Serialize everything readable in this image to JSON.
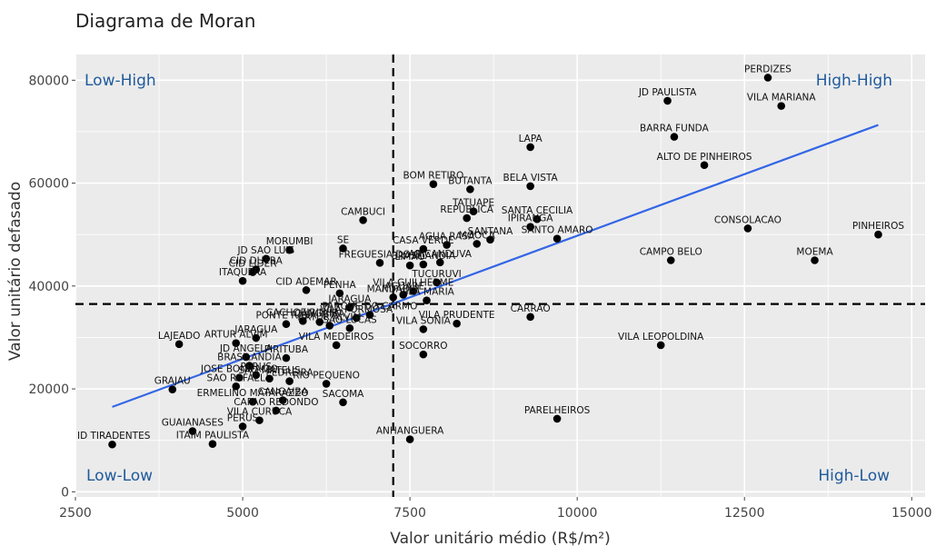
{
  "chart_data": {
    "type": "scatter",
    "title": "Diagrama de Moran",
    "xlabel": "Valor unitário médio (R$/m²)",
    "ylabel": "Valor unitário defasado",
    "xlim": [
      2500,
      15200
    ],
    "ylim": [
      -1000,
      85000
    ],
    "xticks": [
      "2500",
      "5000",
      "7500",
      "10000",
      "12500",
      "15000"
    ],
    "xtick_values": [
      2500,
      5000,
      7500,
      10000,
      12500,
      15000
    ],
    "yticks": [
      "0",
      "20000",
      "40000",
      "60000",
      "80000"
    ],
    "ytick_values": [
      0,
      20000,
      40000,
      60000,
      80000
    ],
    "grid": true,
    "mean_x": 7250,
    "mean_y": 36500,
    "trend_line": {
      "x": [
        3050,
        14500
      ],
      "y": [
        16500,
        71300
      ],
      "color": "#3366e6"
    },
    "quadrants": {
      "top_left": "Low-High",
      "top_right": "High-High",
      "bottom_left": "Low-Low",
      "bottom_right": "High-Low"
    },
    "colors": {
      "panel": "#ebebeb",
      "grid": "#ffffff",
      "points": "#000000",
      "quadrant_text": "#1f5a9c"
    },
    "points": [
      {
        "label": "PERDIZES",
        "x": 12850,
        "y": 80500
      },
      {
        "label": "JD PAULISTA",
        "x": 11350,
        "y": 76000
      },
      {
        "label": "VILA MARIANA",
        "x": 13050,
        "y": 75000
      },
      {
        "label": "BARRA FUNDA",
        "x": 11450,
        "y": 69000
      },
      {
        "label": "LAPA",
        "x": 9300,
        "y": 67000
      },
      {
        "label": "ALTO DE PINHEIROS",
        "x": 11900,
        "y": 63500
      },
      {
        "label": "BOM RETIRO",
        "x": 7850,
        "y": 59800
      },
      {
        "label": "BUTANTA",
        "x": 8400,
        "y": 58800
      },
      {
        "label": "BELA VISTA",
        "x": 9300,
        "y": 59400
      },
      {
        "label": "CAMBUCI",
        "x": 6800,
        "y": 52800
      },
      {
        "label": "TATUAPE",
        "x": 8450,
        "y": 54500
      },
      {
        "label": "REPUBLICA",
        "x": 8350,
        "y": 53200
      },
      {
        "label": "SANTA CECILIA",
        "x": 9400,
        "y": 53000
      },
      {
        "label": "IPIRANGA",
        "x": 9300,
        "y": 51500
      },
      {
        "label": "CONSOLACAO",
        "x": 12550,
        "y": 51200
      },
      {
        "label": "PINHEIROS",
        "x": 14500,
        "y": 50000
      },
      {
        "label": "SANTO AMARO",
        "x": 9700,
        "y": 49200
      },
      {
        "label": "SANTANA",
        "x": 8700,
        "y": 49000
      },
      {
        "label": "AGUA RASA",
        "x": 8050,
        "y": 48000
      },
      {
        "label": "MOOCA",
        "x": 8500,
        "y": 48200
      },
      {
        "label": "MORUMBI",
        "x": 5700,
        "y": 47000
      },
      {
        "label": "SE",
        "x": 6500,
        "y": 47300
      },
      {
        "label": "CASA VERDE",
        "x": 7700,
        "y": 47200
      },
      {
        "label": "JD SAO LUIS",
        "x": 5350,
        "y": 45300
      },
      {
        "label": "CAMPO BELO",
        "x": 11400,
        "y": 45000
      },
      {
        "label": "MOEMA",
        "x": 13550,
        "y": 45000
      },
      {
        "label": "FREGUESIA DO O",
        "x": 7050,
        "y": 44500
      },
      {
        "label": "LIMAO",
        "x": 7500,
        "y": 44000
      },
      {
        "label": "BRASILANDIA",
        "x": 7700,
        "y": 44200
      },
      {
        "label": "ARICANDUVA",
        "x": 7950,
        "y": 44600
      },
      {
        "label": "CID DUTRA",
        "x": 5200,
        "y": 43200
      },
      {
        "label": "CID LIDER",
        "x": 5150,
        "y": 42700
      },
      {
        "label": "ITAQUERA",
        "x": 5000,
        "y": 41000
      },
      {
        "label": "TUCURUVI",
        "x": 7900,
        "y": 40700
      },
      {
        "label": "CID ADEMAR",
        "x": 5950,
        "y": 39200
      },
      {
        "label": "VILA GUILHERME",
        "x": 7550,
        "y": 39000
      },
      {
        "label": "PENHA",
        "x": 6450,
        "y": 38600
      },
      {
        "label": "JAGUARE",
        "x": 7400,
        "y": 38300
      },
      {
        "label": "MANDAQUI",
        "x": 7250,
        "y": 37800
      },
      {
        "label": "VILA MARIA",
        "x": 7750,
        "y": 37200
      },
      {
        "label": "JARAGUA",
        "x": 6600,
        "y": 35800
      },
      {
        "label": "CARRAO",
        "x": 9300,
        "y": 34000
      },
      {
        "label": "PONTE RASA",
        "x": 5650,
        "y": 32600
      },
      {
        "label": "CACHOEIRINHA",
        "x": 5900,
        "y": 33200
      },
      {
        "label": "CANGAIBA",
        "x": 6150,
        "y": 33000
      },
      {
        "label": "ARTUR ALVIM",
        "x": 6300,
        "y": 32300
      },
      {
        "label": "VILA FORMOSA",
        "x": 6700,
        "y": 33800
      },
      {
        "label": "PARQUE DO CARMO",
        "x": 6900,
        "y": 34400
      },
      {
        "label": "VILA PRUDENTE",
        "x": 8200,
        "y": 32700
      },
      {
        "label": "SAO LUCAS",
        "x": 6600,
        "y": 31800
      },
      {
        "label": "VILA SONIA",
        "x": 7700,
        "y": 31600
      },
      {
        "label": "JARAGUA",
        "x": 5200,
        "y": 29900
      },
      {
        "label": "VILA MEDEIROS",
        "x": 6400,
        "y": 28500
      },
      {
        "label": "LAJEADO",
        "x": 4050,
        "y": 28700
      },
      {
        "label": "ARTUR ALVIM",
        "x": 4900,
        "y": 28900
      },
      {
        "label": "VILA LEOPOLDINA",
        "x": 11250,
        "y": 28500
      },
      {
        "label": "SOCORRO",
        "x": 7700,
        "y": 26700
      },
      {
        "label": "JD ANGELA",
        "x": 5050,
        "y": 26200
      },
      {
        "label": "PIRITUBA",
        "x": 5650,
        "y": 26000
      },
      {
        "label": "BRASILANDIA",
        "x": 5100,
        "y": 24500
      },
      {
        "label": "GRAJAU",
        "x": 3950,
        "y": 19900
      },
      {
        "label": "JOSE BONIFACIO",
        "x": 4950,
        "y": 22200
      },
      {
        "label": "PERUS",
        "x": 5200,
        "y": 22700
      },
      {
        "label": "SAO MATEUS",
        "x": 5400,
        "y": 22000
      },
      {
        "label": "SAO RAFAEL",
        "x": 4900,
        "y": 20500
      },
      {
        "label": "PEDREIRA",
        "x": 5700,
        "y": 21500
      },
      {
        "label": "RIO PEQUENO",
        "x": 6250,
        "y": 21000
      },
      {
        "label": "PARELHEIROS",
        "x": 9700,
        "y": 14200
      },
      {
        "label": "ERMELINO MATARAZZO",
        "x": 5150,
        "y": 17500
      },
      {
        "label": "CANGAIBA",
        "x": 5600,
        "y": 17800
      },
      {
        "label": "CAPAO REDONDO",
        "x": 5500,
        "y": 15800
      },
      {
        "label": "SACOMA",
        "x": 6500,
        "y": 17400
      },
      {
        "label": "VILA CURUCA",
        "x": 5250,
        "y": 13900
      },
      {
        "label": "PERUS",
        "x": 5000,
        "y": 12700
      },
      {
        "label": "GUAIANASES",
        "x": 4250,
        "y": 11800
      },
      {
        "label": "ANHANGUERA",
        "x": 7500,
        "y": 10200
      },
      {
        "label": "ID TIRADENTES",
        "x": 3050,
        "y": 9200
      },
      {
        "label": "ITAIM PAULISTA",
        "x": 4550,
        "y": 9300
      }
    ]
  }
}
